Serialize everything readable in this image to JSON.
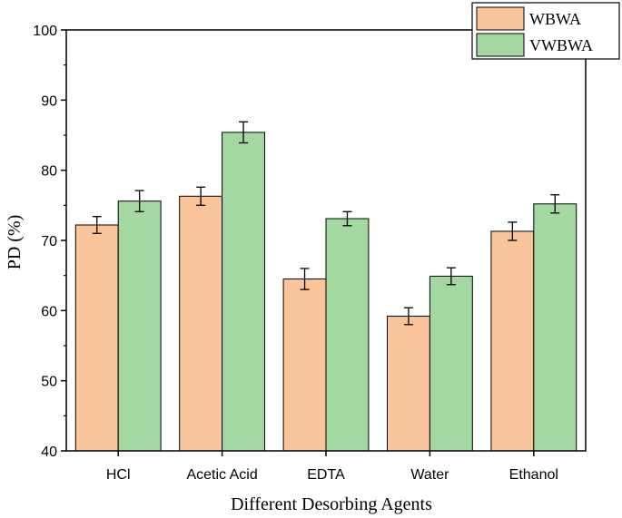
{
  "chart_data": {
    "type": "bar",
    "title": "",
    "xlabel": "Different Desorbing Agents",
    "ylabel": "PD (%)",
    "ylim": [
      40,
      100
    ],
    "yticks": [
      40,
      50,
      60,
      70,
      80,
      90,
      100
    ],
    "categories": [
      "HCl",
      "Acetic Acid",
      "EDTA",
      "Water",
      "Ethanol"
    ],
    "series": [
      {
        "name": "WBWA",
        "color": "#F9C49A",
        "values": [
          72.2,
          76.3,
          64.5,
          59.2,
          71.3
        ],
        "errors": [
          1.2,
          1.3,
          1.5,
          1.2,
          1.3
        ]
      },
      {
        "name": "VWBWA",
        "color": "#A3D9A0",
        "values": [
          75.6,
          85.4,
          73.1,
          64.9,
          75.2
        ],
        "errors": [
          1.5,
          1.5,
          1.0,
          1.2,
          1.3
        ]
      }
    ],
    "grid": false,
    "legend_position": "top-right"
  }
}
